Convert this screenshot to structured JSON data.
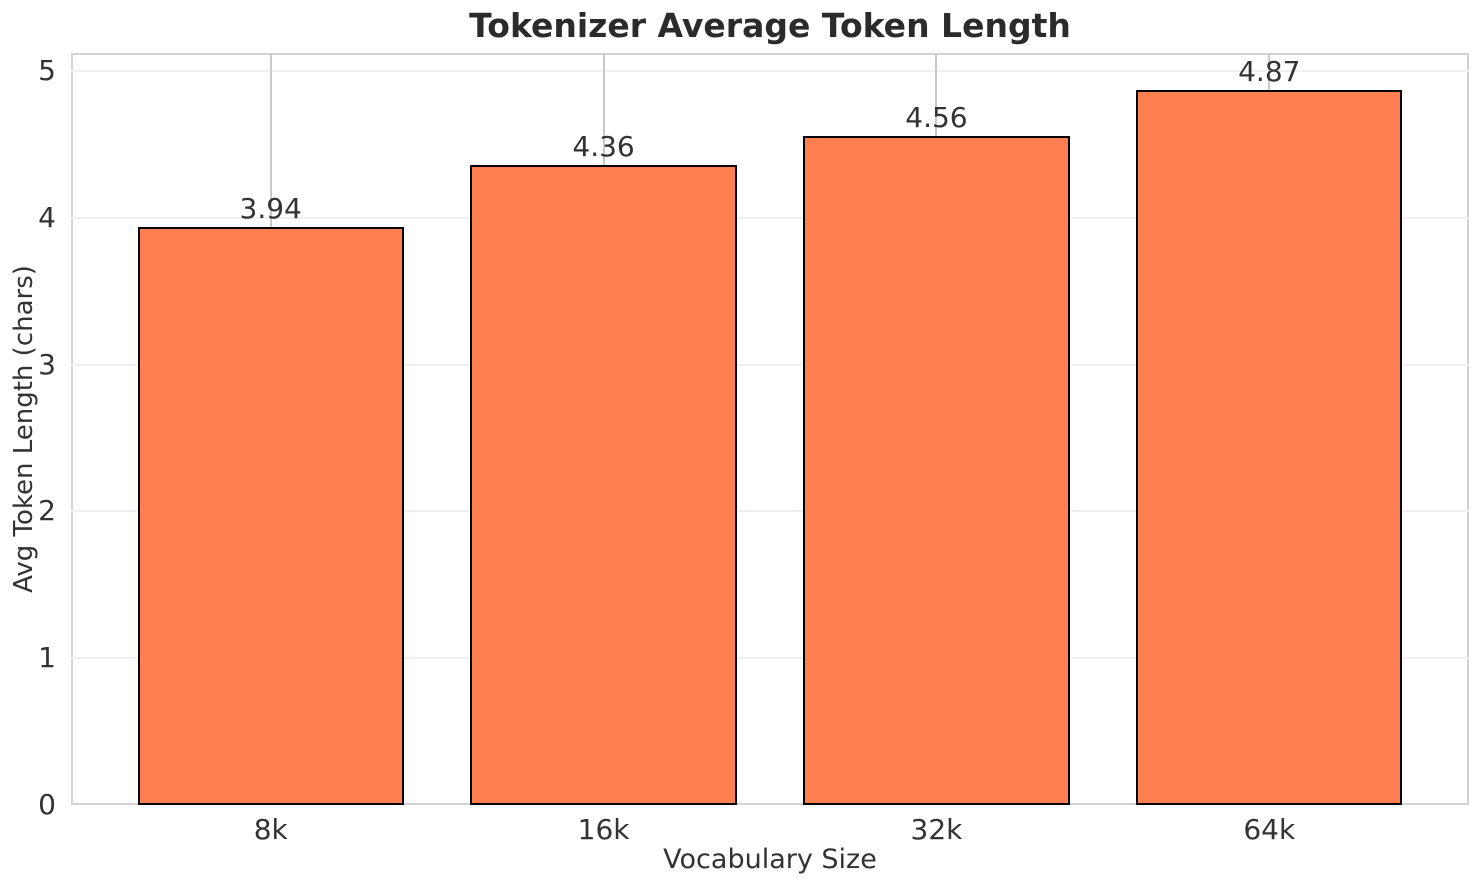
{
  "chart_data": {
    "type": "bar",
    "title": "Tokenizer Average Token Length",
    "xlabel": "Vocabulary Size",
    "ylabel": "Avg Token Length (chars)",
    "categories": [
      "8k",
      "16k",
      "32k",
      "64k"
    ],
    "values": [
      3.94,
      4.36,
      4.56,
      4.87
    ],
    "bar_labels": [
      "3.94",
      "4.36",
      "4.56",
      "4.87"
    ],
    "ytick_labels": [
      "0",
      "1",
      "2",
      "3",
      "4",
      "5"
    ],
    "yticks": [
      0,
      1,
      2,
      3,
      4,
      5
    ],
    "ylim": [
      0,
      5
    ],
    "xlim_padding": [
      -0.6,
      3.6
    ],
    "bar_width_units": 0.8,
    "grid": "both",
    "legend": "none",
    "colors": {
      "bar_fill": "#FF7F50",
      "bar_edge": "#000000",
      "h_gridline": "#f0f0f0",
      "v_gridline": "#c9c9c9",
      "spine": "#d3d3d3",
      "title_text": "#2b2b2b",
      "tick_text": "#333333"
    }
  }
}
